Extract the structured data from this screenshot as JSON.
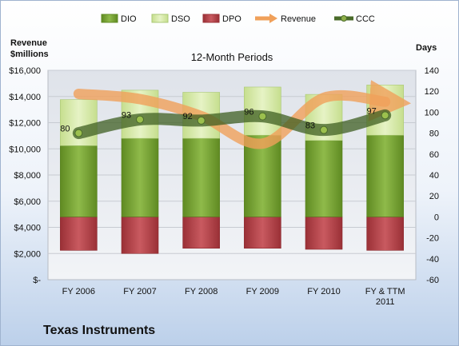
{
  "company": "Texas Instruments",
  "chart_data": {
    "type": "bar",
    "title": "12-Month Periods",
    "categories": [
      [
        "FY 2006"
      ],
      [
        "FY 2007"
      ],
      [
        "FY 2008"
      ],
      [
        "FY 2009"
      ],
      [
        "FY 2010"
      ],
      [
        "FY & TTM",
        "2011"
      ]
    ],
    "left_axis": {
      "label_lines": [
        "Revenue",
        "$millions"
      ],
      "ylim": [
        0,
        16000
      ],
      "ticks": [
        "$-",
        "$2,000",
        "$4,000",
        "$6,000",
        "$8,000",
        "$10,000",
        "$12,000",
        "$14,000",
        "$16,000"
      ]
    },
    "right_axis": {
      "label": "Days",
      "ylim": [
        -60,
        140
      ],
      "ticks": [
        -60,
        -40,
        -20,
        0,
        20,
        40,
        60,
        80,
        100,
        120,
        140
      ]
    },
    "legend": [
      "DIO",
      "DSO",
      "DPO",
      "Revenue",
      "CCC"
    ],
    "legend_position": "top",
    "colors": {
      "DIO": "#76a034",
      "DSO": "#d4e8a6",
      "DPO": "#b8424a",
      "Revenue": "#f0a05a",
      "CCC": "#4a6b2a"
    },
    "series": [
      {
        "name": "DIO",
        "axis": "right",
        "values": [
          68,
          75,
          75,
          78,
          73,
          78
        ]
      },
      {
        "name": "DSO",
        "axis": "right",
        "values": [
          44,
          46,
          44,
          46,
          44,
          48
        ]
      },
      {
        "name": "DPO",
        "axis": "right",
        "values": [
          -32,
          -35,
          -30,
          -30,
          -31,
          -32
        ]
      },
      {
        "name": "Revenue",
        "axis": "left",
        "values": [
          14200,
          13800,
          12500,
          10400,
          13900,
          13600
        ]
      },
      {
        "name": "CCC",
        "axis": "right",
        "values": [
          80,
          93,
          92,
          96,
          83,
          97
        ]
      }
    ],
    "ccc_labels": [
      "80",
      "93",
      "92",
      "96",
      "83",
      "97"
    ]
  }
}
